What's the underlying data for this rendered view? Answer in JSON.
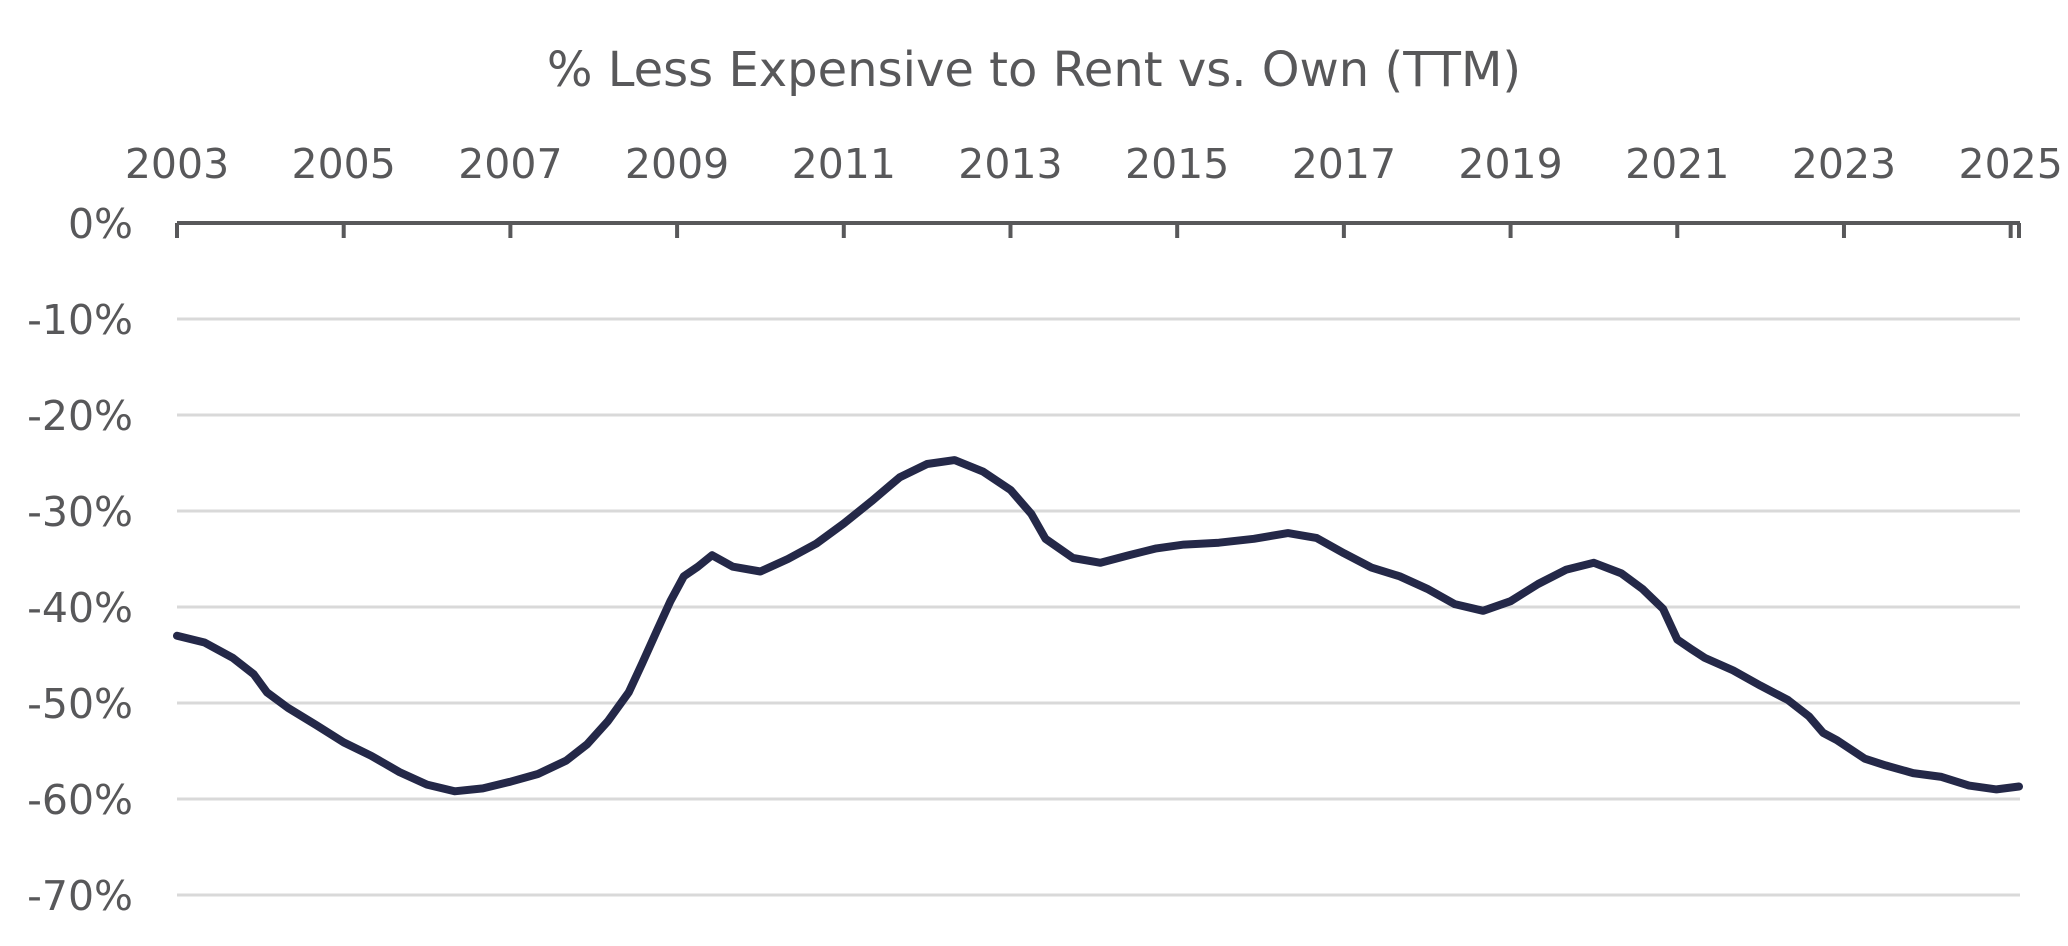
{
  "colors": {
    "series": "#242848",
    "text": "#58585a",
    "grid": "#d9d9d9",
    "axis": "#58585a",
    "background": "#ffffff"
  },
  "chart_data": {
    "type": "line",
    "title": "% Less Expensive to Rent vs. Own (TTM)",
    "xlabel": "",
    "ylabel": "",
    "xlim": [
      2003,
      2025.1
    ],
    "ylim": [
      -70,
      0
    ],
    "x_ticks": [
      2003,
      2005,
      2007,
      2009,
      2011,
      2013,
      2015,
      2017,
      2019,
      2021,
      2023,
      2025
    ],
    "x_tick_labels": [
      "2003",
      "2005",
      "2007",
      "2009",
      "2011",
      "2013",
      "2015",
      "2017",
      "2019",
      "2021",
      "2023",
      "2025"
    ],
    "x_axis_position": "top",
    "y_ticks": [
      0,
      -10,
      -20,
      -30,
      -40,
      -50,
      -60,
      -70
    ],
    "y_tick_labels": [
      "0%",
      "-10%",
      "-20%",
      "-30%",
      "-40%",
      "-50%",
      "-60%",
      "-70%"
    ],
    "grid": true,
    "legend": "none",
    "series": [
      {
        "name": "% Less Expensive to Rent vs. Own (TTM)",
        "x": [
          2003.0,
          2003.33,
          2003.67,
          2003.92,
          2004.08,
          2004.33,
          2004.67,
          2005.0,
          2005.33,
          2005.67,
          2006.0,
          2006.33,
          2006.67,
          2007.0,
          2007.33,
          2007.67,
          2007.92,
          2008.17,
          2008.42,
          2008.58,
          2008.75,
          2008.92,
          2009.08,
          2009.25,
          2009.42,
          2009.67,
          2010.0,
          2010.33,
          2010.67,
          2011.0,
          2011.33,
          2011.67,
          2012.0,
          2012.33,
          2012.67,
          2013.0,
          2013.25,
          2013.42,
          2013.75,
          2014.08,
          2014.42,
          2014.75,
          2015.08,
          2015.5,
          2015.92,
          2016.33,
          2016.67,
          2017.0,
          2017.33,
          2017.67,
          2018.0,
          2018.33,
          2018.67,
          2019.0,
          2019.33,
          2019.67,
          2020.0,
          2020.33,
          2020.58,
          2020.83,
          2021.0,
          2021.17,
          2021.33,
          2021.67,
          2022.0,
          2022.33,
          2022.58,
          2022.75,
          2022.92,
          2023.25,
          2023.5,
          2023.83,
          2024.17,
          2024.5,
          2024.83,
          2025.1
        ],
        "y": [
          -43.0,
          -43.7,
          -45.3,
          -47.0,
          -48.9,
          -50.5,
          -52.3,
          -54.1,
          -55.5,
          -57.2,
          -58.5,
          -59.2,
          -58.9,
          -58.2,
          -57.4,
          -56.0,
          -54.3,
          -51.9,
          -48.9,
          -45.9,
          -42.6,
          -39.4,
          -36.8,
          -35.8,
          -34.6,
          -35.8,
          -36.3,
          -35.0,
          -33.4,
          -31.3,
          -29.0,
          -26.5,
          -25.1,
          -24.7,
          -25.9,
          -27.8,
          -30.3,
          -32.9,
          -34.9,
          -35.4,
          -34.6,
          -33.9,
          -33.5,
          -33.3,
          -32.9,
          -32.3,
          -32.8,
          -34.4,
          -35.9,
          -36.8,
          -38.1,
          -39.7,
          -40.4,
          -39.4,
          -37.6,
          -36.1,
          -35.4,
          -36.5,
          -38.1,
          -40.2,
          -43.4,
          -44.4,
          -45.3,
          -46.6,
          -48.2,
          -49.7,
          -51.4,
          -53.1,
          -53.9,
          -55.8,
          -56.5,
          -57.3,
          -57.7,
          -58.6,
          -59.0,
          -58.7
        ]
      }
    ]
  }
}
